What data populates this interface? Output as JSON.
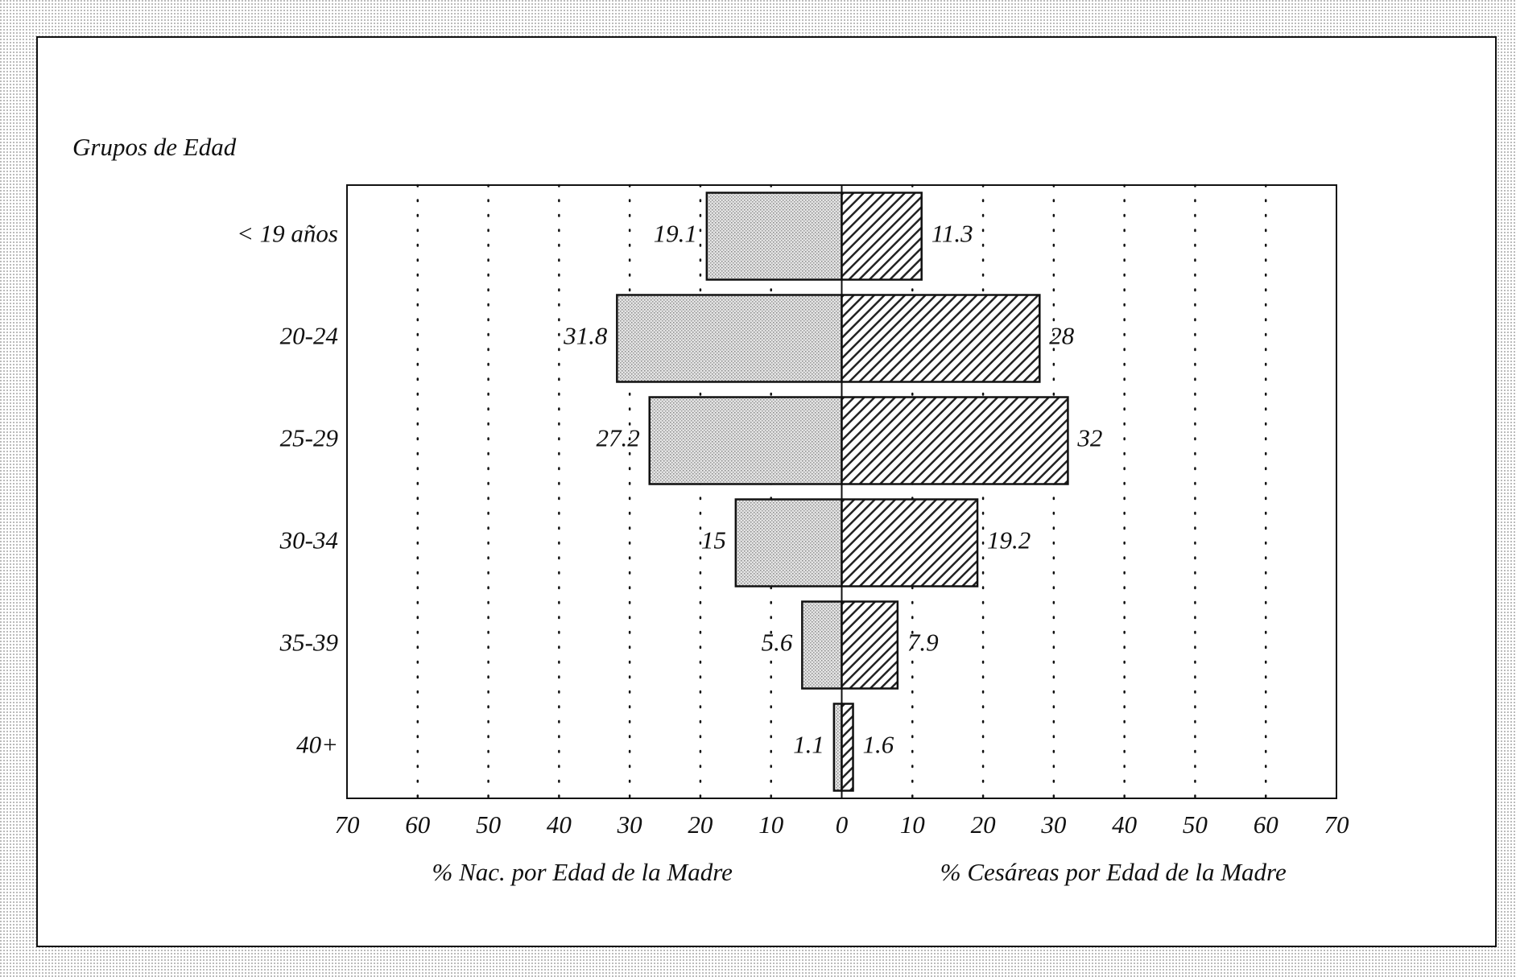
{
  "chart_data": {
    "type": "butterfly",
    "y_label": "Grupos de Edad",
    "categories": [
      "< 19 años",
      "20-24",
      "25-29",
      "30-34",
      "35-39",
      "40+"
    ],
    "series": [
      {
        "name": "% Nac. por Edad de la Madre",
        "color": "#d0d0d0",
        "side": "left",
        "values": [
          19.1,
          31.8,
          27.2,
          15,
          5.6,
          1.1
        ]
      },
      {
        "name": "% Cesáreas por Edad de la Madre",
        "color": "#333333",
        "side": "right",
        "values": [
          11.3,
          28,
          32,
          19.2,
          7.9,
          1.6
        ]
      }
    ],
    "xlim": [
      -70,
      70
    ],
    "xticks": [
      {
        "value": -70,
        "label": "70"
      },
      {
        "value": -60,
        "label": "60"
      },
      {
        "value": -50,
        "label": "50"
      },
      {
        "value": -40,
        "label": "40"
      },
      {
        "value": -30,
        "label": "30"
      },
      {
        "value": -20,
        "label": "20"
      },
      {
        "value": -10,
        "label": "10"
      },
      0,
      10,
      20,
      30,
      40,
      50,
      60,
      70
    ],
    "grid": true
  }
}
